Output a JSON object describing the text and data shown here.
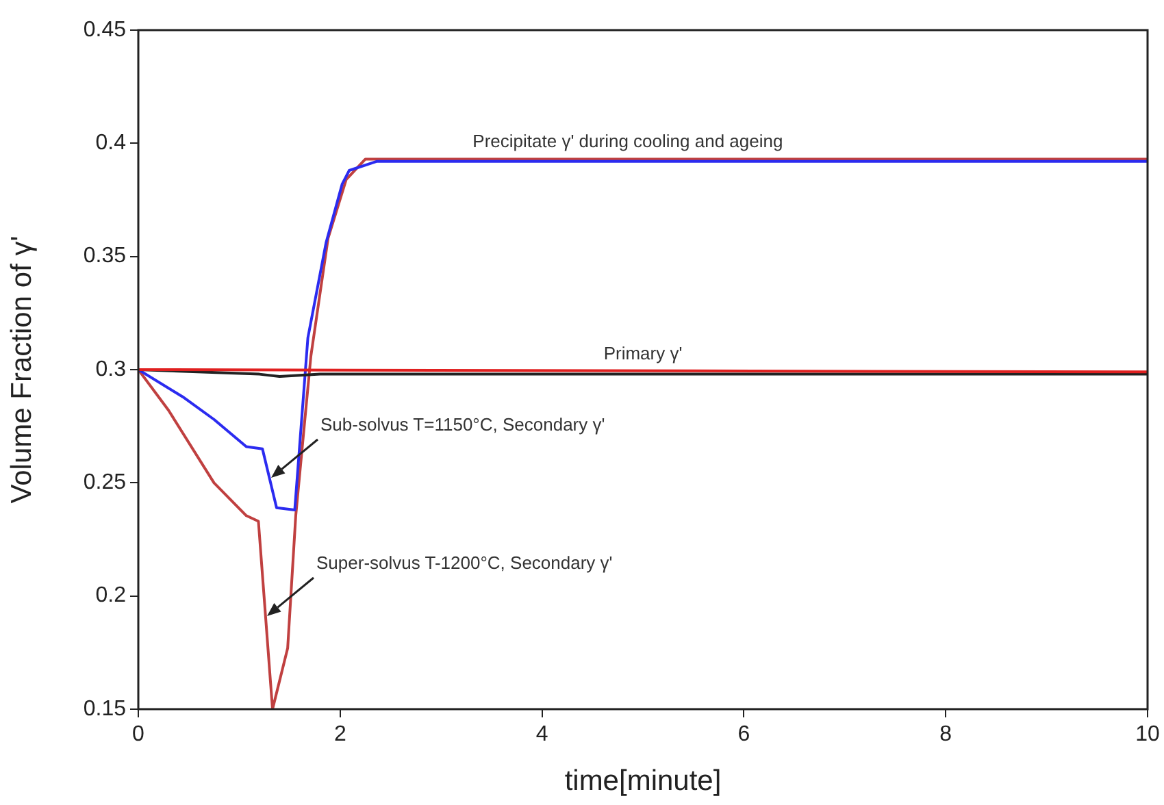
{
  "chart_data": {
    "type": "line",
    "xlabel": "time[minute]",
    "ylabel": "Volume Fraction of γ'",
    "xlim": [
      0,
      10
    ],
    "xticks": [
      0,
      2,
      4,
      6,
      8,
      10
    ],
    "ylim": [
      0.15,
      0.45
    ],
    "yticks": [
      0.15,
      0.2,
      0.25,
      0.3,
      0.35,
      0.4,
      0.45
    ],
    "grid": false,
    "legend": false,
    "marker": "none",
    "line_style": "solid",
    "series": [
      {
        "color": "#e02020",
        "x": [
          0,
          10
        ],
        "values": [
          0.3,
          0.299
        ]
      },
      {
        "color": "#222222",
        "x": [
          0,
          1.2,
          1.4,
          1.8,
          10
        ],
        "values": [
          0.3,
          0.298,
          0.297,
          0.298,
          0.298
        ]
      },
      {
        "color": "#2b2bf0",
        "x": [
          0,
          0.44,
          0.75,
          1.07,
          1.23,
          1.37,
          1.55,
          1.68,
          1.86,
          2.02,
          2.09,
          2.36,
          10
        ],
        "values": [
          0.3,
          0.288,
          0.278,
          0.266,
          0.265,
          0.239,
          0.238,
          0.314,
          0.356,
          0.382,
          0.388,
          0.392,
          0.392
        ]
      },
      {
        "color": "#c04040",
        "x": [
          0,
          0.3,
          0.75,
          1.07,
          1.19,
          1.33,
          1.48,
          1.56,
          1.71,
          1.88,
          2.06,
          2.25,
          10
        ],
        "values": [
          0.3,
          0.282,
          0.25,
          0.2355,
          0.233,
          0.15,
          0.177,
          0.2355,
          0.306,
          0.358,
          0.384,
          0.393,
          0.393
        ]
      }
    ],
    "annotations": [
      {
        "text": "Precipitate γ' during cooling and ageing",
        "x": 4.85,
        "y": 0.393
      },
      {
        "text": "Primary γ'",
        "x": 5.0,
        "y": 0.299
      },
      "Sub-solvus T=1150°C, Secondary γ'",
      "Super-solvus T-1200°C, Secondary γ'"
    ]
  }
}
